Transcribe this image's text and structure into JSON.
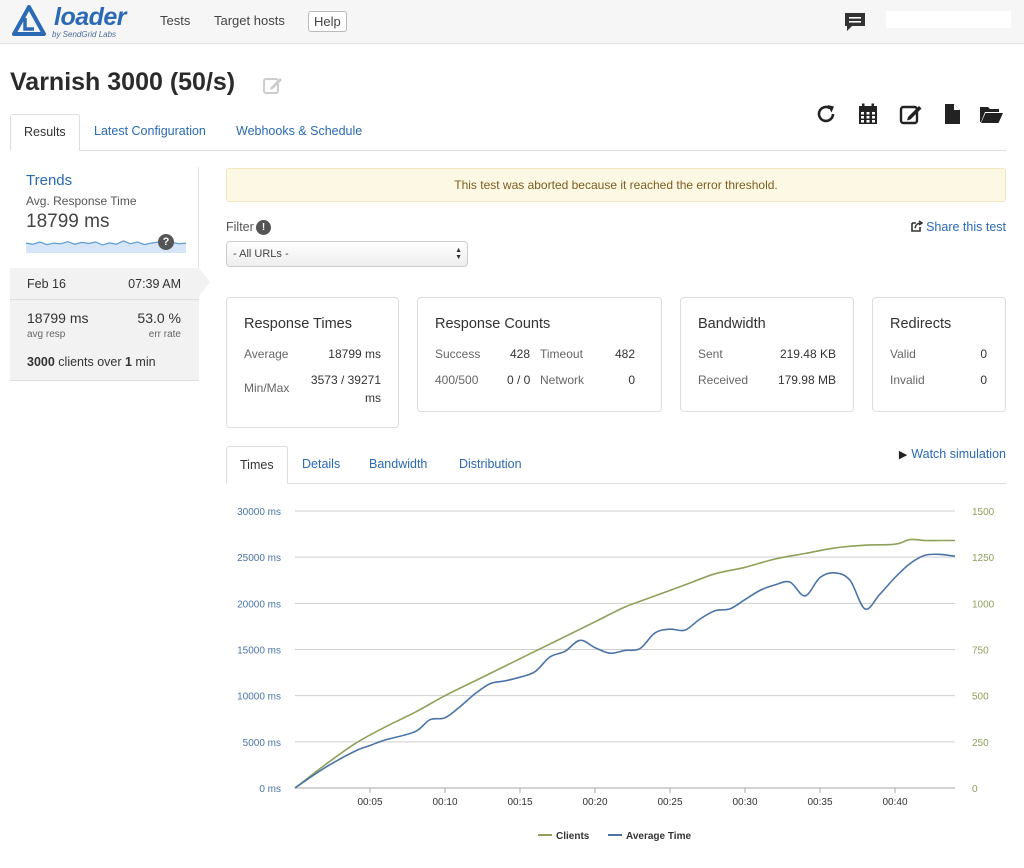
{
  "nav": {
    "logo_word": "loader",
    "logo_sub": "by SendGrid Labs",
    "tests": "Tests",
    "target_hosts": "Target hosts",
    "help": "Help",
    "search_placeholder": ""
  },
  "header": {
    "title": "Varnish 3000 (50/s)",
    "tabs": [
      "Results",
      "Latest Configuration",
      "Webhooks & Schedule"
    ],
    "toolbar_icons": [
      "refresh-icon",
      "calendar-icon",
      "edit-icon",
      "document-icon",
      "folder-open-icon"
    ]
  },
  "trends": {
    "title": "Trends",
    "subtitle": "Avg. Response Time",
    "value": "18799 ms",
    "help": "?",
    "sparkline": [
      0.55,
      0.6,
      0.5,
      0.62,
      0.55,
      0.58,
      0.48,
      0.6,
      0.52,
      0.57,
      0.5,
      0.63,
      0.54,
      0.6,
      0.45,
      0.58,
      0.5,
      0.62,
      0.55,
      0.5,
      0.6,
      0.52,
      0.58,
      0.55
    ]
  },
  "run": {
    "date": "Feb 16",
    "time": "07:39 AM",
    "avg_resp": "18799 ms",
    "avg_resp_label": "avg resp",
    "err_rate": "53.0 %",
    "err_rate_label": "err rate",
    "clients_num": "3000",
    "clients_mid": " clients over ",
    "clients_dur": "1",
    "clients_unit": " min"
  },
  "alert": "This test was aborted because it reached the error threshold.",
  "filter": {
    "label": "Filter",
    "info": "!",
    "selected": "- All URLs -"
  },
  "share": "Share this test",
  "cards": {
    "response_times": {
      "title": "Response Times",
      "average_label": "Average",
      "average": "18799 ms",
      "minmax_label": "Min/Max",
      "minmax_1": "3573 / 39271",
      "minmax_2": "ms"
    },
    "response_counts": {
      "title": "Response Counts",
      "success_label": "Success",
      "success": "428",
      "timeout_label": "Timeout",
      "timeout": "482",
      "e400_label": "400/500",
      "e400": "0 / 0",
      "network_label": "Network",
      "network": "0"
    },
    "bandwidth": {
      "title": "Bandwidth",
      "sent_label": "Sent",
      "sent": "219.48 KB",
      "received_label": "Received",
      "received": "179.98 MB"
    },
    "redirects": {
      "title": "Redirects",
      "valid_label": "Valid",
      "valid": "0",
      "invalid_label": "Invalid",
      "invalid": "0"
    }
  },
  "chart_tabs": [
    "Times",
    "Details",
    "Bandwidth",
    "Distribution"
  ],
  "watch": "Watch simulation",
  "colors": {
    "clients": "#8fa05a",
    "average": "#4a74a8",
    "link": "#2a6ab4"
  },
  "chart_data": {
    "type": "line",
    "x_ticks": [
      "00:05",
      "00:10",
      "00:15",
      "00:20",
      "00:25",
      "00:30",
      "00:35",
      "00:40"
    ],
    "y_left_ticks": [
      "30000 ms",
      "25000 ms",
      "20000 ms",
      "15000 ms",
      "10000 ms",
      "5000 ms",
      "0 ms"
    ],
    "y_right_ticks": [
      "1500",
      "1250",
      "1000",
      "750",
      "500",
      "250",
      "0"
    ],
    "ylim_left": [
      0,
      30000
    ],
    "ylim_right": [
      0,
      1500
    ],
    "xlim": [
      0,
      44
    ],
    "grid": true,
    "legend_position": "bottom-center",
    "series": [
      {
        "name": "Clients",
        "axis": "right",
        "x": [
          0,
          2,
          4,
          6,
          8,
          10,
          12,
          14,
          16,
          18,
          20,
          22,
          24,
          26,
          28,
          30,
          32,
          34,
          36,
          38,
          40,
          41,
          42,
          43,
          44
        ],
        "y": [
          0,
          125,
          240,
          330,
          410,
          500,
          580,
          660,
          740,
          820,
          900,
          980,
          1040,
          1100,
          1160,
          1195,
          1240,
          1270,
          1300,
          1315,
          1320,
          1345,
          1340,
          1340,
          1340
        ]
      },
      {
        "name": "Average Time",
        "axis": "left",
        "x": [
          0,
          2,
          4,
          5,
          6,
          8,
          9,
          10,
          11,
          12,
          13,
          14,
          15,
          16,
          17,
          18,
          19,
          20,
          21,
          22,
          23,
          24,
          25,
          26,
          27,
          28,
          29,
          30,
          31,
          32,
          33,
          34,
          35,
          36,
          37,
          38,
          39,
          40,
          41,
          42,
          43,
          44
        ],
        "y": [
          0,
          2200,
          4000,
          4600,
          5200,
          6100,
          7400,
          7600,
          8800,
          10200,
          11300,
          11600,
          12000,
          12600,
          14200,
          14800,
          16000,
          15200,
          14600,
          14900,
          15100,
          16800,
          17200,
          17100,
          18300,
          19200,
          19400,
          20400,
          21400,
          22000,
          22300,
          20800,
          22800,
          23300,
          22500,
          19400,
          21000,
          22800,
          24300,
          25200,
          25300,
          25100
        ]
      }
    ]
  }
}
